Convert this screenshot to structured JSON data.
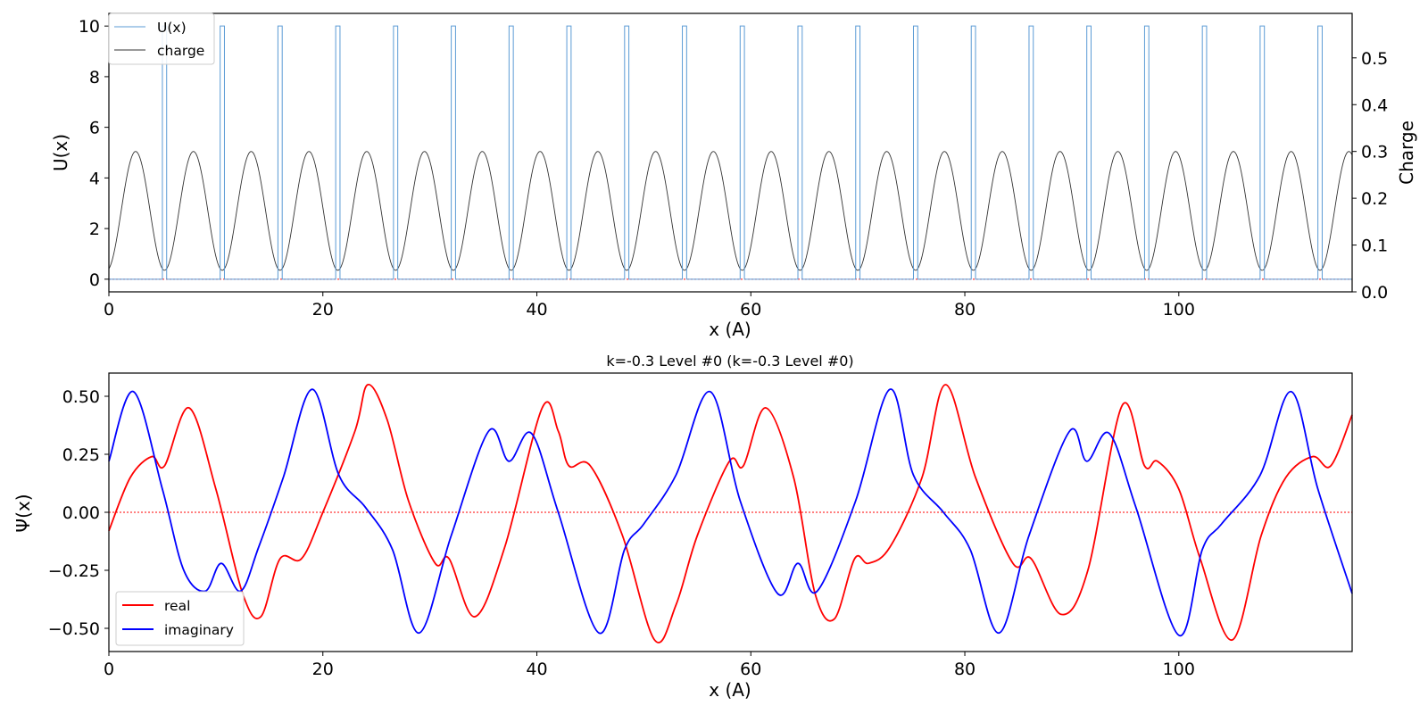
{
  "chart_data": [
    {
      "type": "line",
      "title": "",
      "xlabel": "x (A)",
      "ylabel": "U(x)",
      "ylabel_right": "Charge",
      "xlim": [
        0,
        116.2
      ],
      "ylim": [
        -0.5,
        10.5
      ],
      "ylim_right": [
        0.0,
        0.595
      ],
      "xticks": [
        0,
        20,
        40,
        60,
        80,
        100
      ],
      "yticks": [
        0,
        2,
        4,
        6,
        8,
        10
      ],
      "yticks_right": [
        "0.0",
        "0.1",
        "0.2",
        "0.3",
        "0.4",
        "0.5"
      ],
      "legend_position": "top-left",
      "series": [
        {
          "name": "U(x)",
          "color": "#5b9bd5",
          "axis": "left",
          "description": "square barriers of height 10, width 0.4 A, period 5.4 A, starting near x=5.0",
          "barrier_height": 10,
          "barrier_starts": [
            5.0,
            10.4,
            15.8,
            21.2,
            26.6,
            32.0,
            37.4,
            42.8,
            48.2,
            53.6,
            59.0,
            64.4,
            69.8,
            75.2,
            80.6,
            86.0,
            91.4,
            96.8,
            102.2,
            107.6,
            113.0
          ],
          "barrier_width": 0.4
        },
        {
          "name": "charge",
          "color": "#333333",
          "axis": "right",
          "period": 5.4,
          "max": 0.3,
          "min": 0.046,
          "peak_x": [
            2.5,
            7.9,
            13.3,
            18.7,
            24.1,
            29.5,
            34.9,
            40.3,
            45.7,
            51.1,
            56.5,
            61.9,
            67.3,
            72.7,
            78.1,
            83.5,
            88.9,
            94.3,
            99.7,
            105.1,
            110.5,
            115.9
          ]
        }
      ],
      "reference_line": {
        "y": 0,
        "color": "#ff0000",
        "style": "dotted"
      }
    },
    {
      "type": "line",
      "title": "k=-0.3 Level #0 (k=-0.3 Level #0)",
      "xlabel": "x (A)",
      "ylabel": "Ψ(x)",
      "xlim": [
        0,
        116.2
      ],
      "ylim": [
        -0.6,
        0.6
      ],
      "xticks": [
        0,
        20,
        40,
        60,
        80,
        100
      ],
      "yticks": [
        "−0.50",
        "−0.25",
        "0.00",
        "0.25",
        "0.50"
      ],
      "yticks_values": [
        -0.5,
        -0.25,
        0,
        0.25,
        0.5
      ],
      "legend_position": "bottom-left",
      "series": [
        {
          "name": "real",
          "color": "#ff0000",
          "x": [
            0,
            2,
            4,
            5.2,
            7.5,
            10,
            12.5,
            14.2,
            16,
            18,
            20,
            23,
            24.2,
            26,
            28,
            30.5,
            31.8,
            34.2,
            37,
            40.5,
            42,
            43,
            45,
            48,
            51,
            53,
            55,
            58,
            59.3,
            61.4,
            64,
            66,
            67.8,
            69.7,
            71,
            73,
            76,
            78.2,
            81,
            84.5,
            86.2,
            89,
            91.5,
            94.7,
            96.8,
            98,
            100,
            102,
            105,
            107.7,
            110,
            112.5,
            114.2,
            116.2
          ],
          "y": [
            -0.08,
            0.15,
            0.24,
            0.2,
            0.45,
            0.1,
            -0.35,
            -0.45,
            -0.2,
            -0.2,
            0.0,
            0.35,
            0.55,
            0.4,
            0.05,
            -0.22,
            -0.2,
            -0.45,
            -0.15,
            0.45,
            0.35,
            0.2,
            0.2,
            -0.1,
            -0.55,
            -0.4,
            -0.1,
            0.22,
            0.2,
            0.45,
            0.15,
            -0.35,
            -0.46,
            -0.2,
            -0.22,
            -0.15,
            0.15,
            0.55,
            0.15,
            -0.22,
            -0.2,
            -0.44,
            -0.25,
            0.46,
            0.2,
            0.22,
            0.1,
            -0.2,
            -0.55,
            -0.1,
            0.15,
            0.24,
            0.2,
            0.42
          ]
        },
        {
          "name": "imaginary",
          "color": "#0000ff",
          "x": [
            0,
            2.3,
            5,
            7,
            9,
            10.5,
            12.3,
            14,
            16.3,
            19,
            21.5,
            24,
            26.5,
            29,
            32,
            35.5,
            37.4,
            39.5,
            42,
            45.8,
            48.2,
            50,
            53,
            56.2,
            59,
            62.5,
            64.4,
            66.2,
            69.8,
            73,
            75.2,
            78,
            80.5,
            83.2,
            86,
            89.8,
            91.4,
            93.5,
            96,
            100,
            102.2,
            104,
            107.6,
            110.5,
            113,
            116.2
          ],
          "y": [
            0.22,
            0.52,
            0.1,
            -0.25,
            -0.34,
            -0.22,
            -0.34,
            -0.15,
            0.15,
            0.53,
            0.16,
            0.02,
            -0.16,
            -0.52,
            -0.1,
            0.35,
            0.22,
            0.34,
            0.0,
            -0.52,
            -0.16,
            -0.05,
            0.16,
            0.52,
            0.05,
            -0.35,
            -0.22,
            -0.34,
            0.05,
            0.53,
            0.16,
            0.0,
            -0.16,
            -0.52,
            -0.1,
            0.35,
            0.22,
            0.34,
            0.02,
            -0.53,
            -0.16,
            -0.05,
            0.16,
            0.52,
            0.1,
            -0.35
          ]
        }
      ],
      "reference_line": {
        "y": 0,
        "color": "#ff0000",
        "style": "dotted"
      }
    }
  ]
}
